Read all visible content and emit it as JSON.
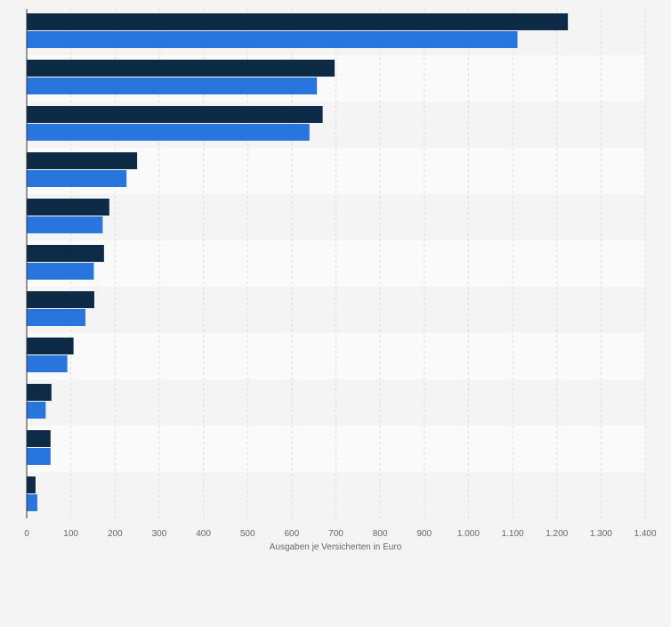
{
  "chart_data": {
    "type": "bar",
    "orientation": "horizontal",
    "categories": [
      "",
      "",
      "",
      "",
      "",
      "",
      "",
      "",
      "",
      "",
      ""
    ],
    "series": [
      {
        "color": "#0d2a46",
        "values": [
          1225,
          697,
          670,
          250,
          187,
          175,
          153,
          106,
          56,
          54,
          20
        ]
      },
      {
        "color": "#2876dd",
        "values": [
          1111,
          657,
          640,
          226,
          172,
          152,
          133,
          92,
          43,
          54,
          24
        ]
      }
    ],
    "xlabel": "Ausgaben je Versicherten in Euro",
    "xlim": [
      0,
      1400
    ],
    "ticks": [
      0,
      100,
      200,
      300,
      400,
      500,
      600,
      700,
      800,
      900,
      1000,
      1100,
      1200,
      1300,
      1400
    ],
    "tick_labels": [
      "0",
      "100",
      "200",
      "300",
      "400",
      "500",
      "600",
      "700",
      "800",
      "900",
      "1.000",
      "1.100",
      "1.200",
      "1.300",
      "1.400"
    ],
    "grid": true,
    "band_colors": [
      "#f4f4f4",
      "#fafafa"
    ]
  }
}
